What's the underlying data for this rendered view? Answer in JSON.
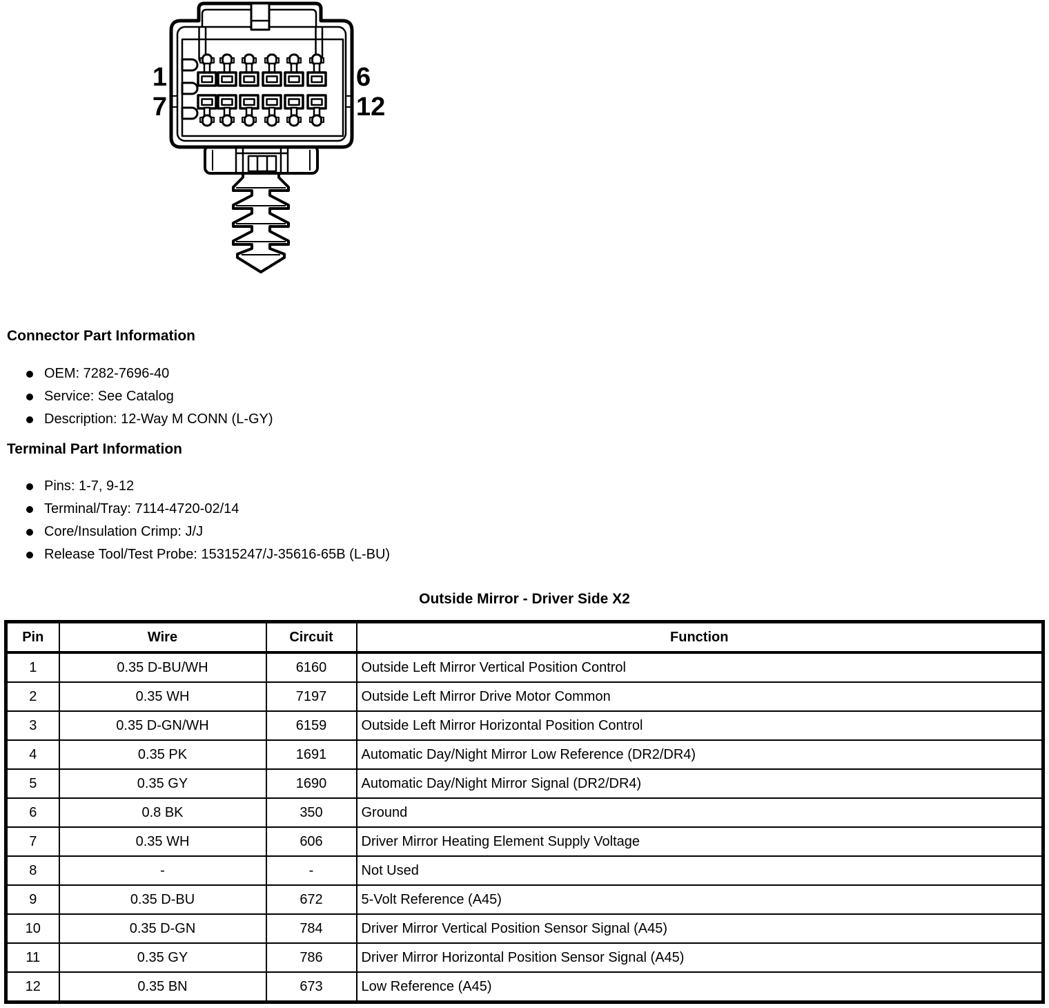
{
  "colors": {
    "ink": "#000000",
    "paper": "#ffffff"
  },
  "connector_diagram": {
    "description": "12-way male connector face view with mounting flange and christmas-tree push fastener",
    "pin_labels": {
      "row1_start": "1",
      "row2_start": "7",
      "row1_end": "6",
      "row2_end": "12"
    },
    "terminal_columns": 6,
    "terminal_rows": 2
  },
  "connector_part_information": {
    "heading": "Connector Part Information",
    "items": [
      "OEM: 7282-7696-40",
      "Service: See Catalog",
      "Description: 12-Way M CONN (L-GY)"
    ]
  },
  "terminal_part_information": {
    "heading": "Terminal Part Information",
    "items": [
      "Pins: 1-7, 9-12",
      "Terminal/Tray: 7114-4720-02/14",
      "Core/Insulation Crimp: J/J",
      "Release Tool/Test Probe: 15315247/J-35616-65B (L-BU)"
    ]
  },
  "pin_table": {
    "title": "Outside Mirror - Driver Side X2",
    "headers": [
      "Pin",
      "Wire",
      "Circuit",
      "Function"
    ],
    "rows": [
      {
        "pin": "1",
        "wire": "0.35 D-BU/WH",
        "circuit": "6160",
        "function": "Outside Left Mirror Vertical Position Control"
      },
      {
        "pin": "2",
        "wire": "0.35 WH",
        "circuit": "7197",
        "function": "Outside Left Mirror Drive Motor Common"
      },
      {
        "pin": "3",
        "wire": "0.35 D-GN/WH",
        "circuit": "6159",
        "function": "Outside Left Mirror Horizontal Position Control"
      },
      {
        "pin": "4",
        "wire": "0.35 PK",
        "circuit": "1691",
        "function": "Automatic Day/Night Mirror Low Reference (DR2/DR4)"
      },
      {
        "pin": "5",
        "wire": "0.35 GY",
        "circuit": "1690",
        "function": "Automatic Day/Night Mirror Signal (DR2/DR4)"
      },
      {
        "pin": "6",
        "wire": "0.8 BK",
        "circuit": "350",
        "function": "Ground"
      },
      {
        "pin": "7",
        "wire": "0.35 WH",
        "circuit": "606",
        "function": "Driver Mirror Heating Element Supply Voltage"
      },
      {
        "pin": "8",
        "wire": "-",
        "circuit": "-",
        "function": "Not Used"
      },
      {
        "pin": "9",
        "wire": "0.35 D-BU",
        "circuit": "672",
        "function": "5-Volt Reference (A45)"
      },
      {
        "pin": "10",
        "wire": "0.35 D-GN",
        "circuit": "784",
        "function": "Driver Mirror Vertical Position Sensor Signal (A45)"
      },
      {
        "pin": "11",
        "wire": "0.35 GY",
        "circuit": "786",
        "function": "Driver Mirror Horizontal Position Sensor Signal (A45)"
      },
      {
        "pin": "12",
        "wire": "0.35 BN",
        "circuit": "673",
        "function": "Low Reference (A45)"
      }
    ]
  }
}
